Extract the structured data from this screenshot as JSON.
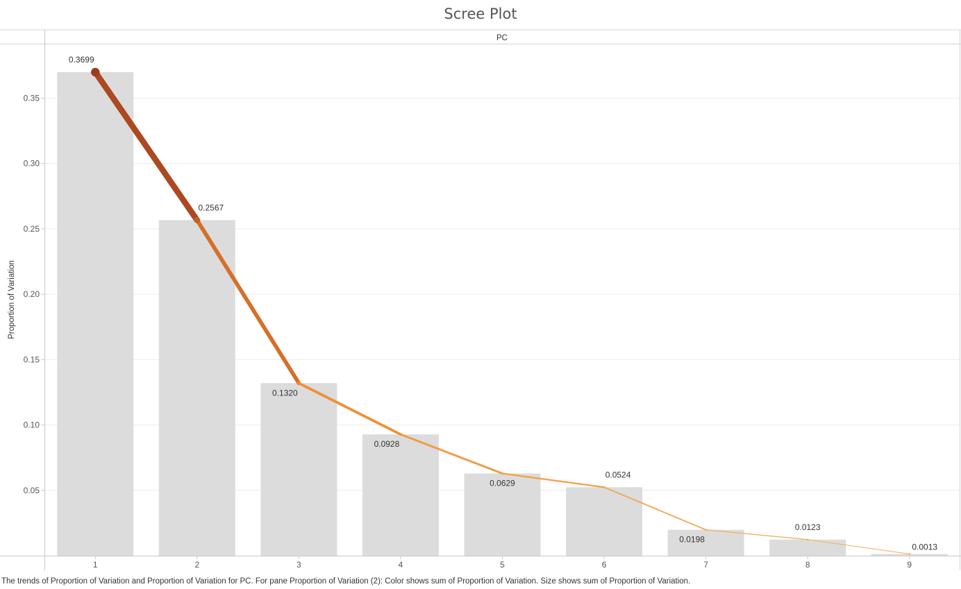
{
  "chart_data": {
    "type": "bar",
    "title": "Scree Plot",
    "column_header": "PC",
    "xlabel": "",
    "ylabel": "Proportion of Variation",
    "categories": [
      "1",
      "2",
      "3",
      "4",
      "5",
      "6",
      "7",
      "8",
      "9"
    ],
    "series": [
      {
        "type": "bar",
        "values": [
          0.3699,
          0.2567,
          0.132,
          0.0928,
          0.0629,
          0.0524,
          0.0198,
          0.0123,
          0.0013
        ]
      },
      {
        "type": "line",
        "values": [
          0.3699,
          0.2567,
          0.132,
          0.0928,
          0.0629,
          0.0524,
          0.0198,
          0.0123,
          0.0013
        ]
      }
    ],
    "data_labels": [
      "0.3699",
      "0.2567",
      "0.1320",
      "0.0928",
      "0.0629",
      "0.0524",
      "0.0198",
      "0.0123",
      "0.0013"
    ],
    "yticks": [
      "0.05",
      "0.10",
      "0.15",
      "0.20",
      "0.25",
      "0.30",
      "0.35"
    ],
    "ylim": [
      0,
      0.39
    ],
    "grid": true,
    "legend": "none",
    "colors": {
      "bar": "#dcdcdc",
      "line_low": "#f5b567",
      "line_mid": "#ef8a2c",
      "line_high": "#9e3a1f",
      "gridline": "#ececec",
      "axis": "#c8c8c8"
    }
  },
  "caption": "The trends of Proportion of Variation and Proportion of Variation for PC.  For pane Proportion of Variation (2):  Color shows sum of Proportion of Variation.  Size shows sum of Proportion of Variation."
}
